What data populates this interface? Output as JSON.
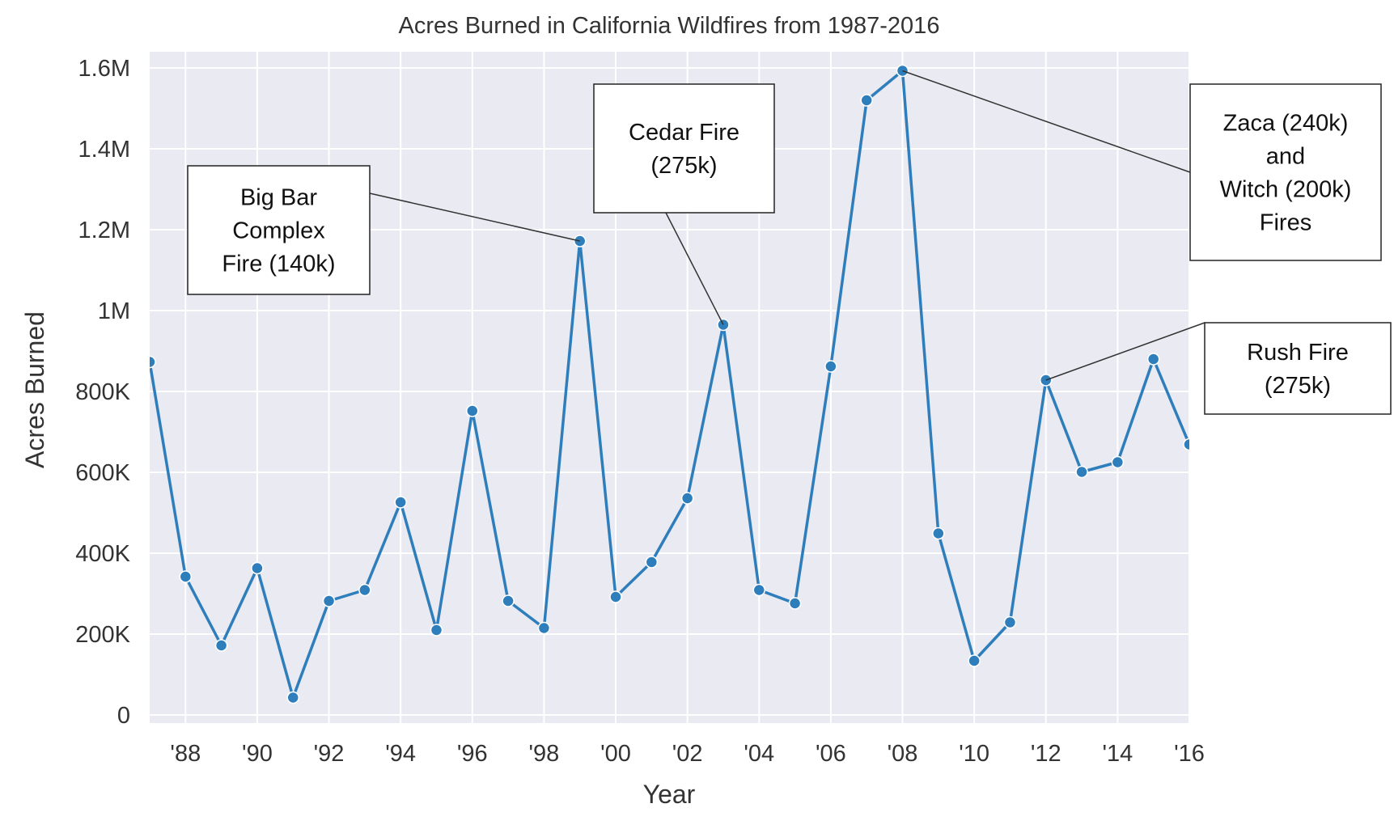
{
  "chart_data": {
    "type": "line",
    "title": "Acres Burned in California Wildfires from 1987-2016",
    "xlabel": "Year",
    "ylabel": "Acres Burned",
    "xlim": [
      1987,
      2016
    ],
    "ylim": [
      -20000,
      1640000
    ],
    "x_ticks": [
      {
        "value": 1988,
        "label": "'88"
      },
      {
        "value": 1990,
        "label": "'90"
      },
      {
        "value": 1992,
        "label": "'92"
      },
      {
        "value": 1994,
        "label": "'94"
      },
      {
        "value": 1996,
        "label": "'96"
      },
      {
        "value": 1998,
        "label": "'98"
      },
      {
        "value": 2000,
        "label": "'00"
      },
      {
        "value": 2002,
        "label": "'02"
      },
      {
        "value": 2004,
        "label": "'04"
      },
      {
        "value": 2006,
        "label": "'06"
      },
      {
        "value": 2008,
        "label": "'08"
      },
      {
        "value": 2010,
        "label": "'10"
      },
      {
        "value": 2012,
        "label": "'12"
      },
      {
        "value": 2014,
        "label": "'14"
      },
      {
        "value": 2016,
        "label": "'16"
      }
    ],
    "y_ticks": [
      {
        "value": 0,
        "label": "0"
      },
      {
        "value": 200000,
        "label": "200K"
      },
      {
        "value": 400000,
        "label": "400K"
      },
      {
        "value": 600000,
        "label": "600K"
      },
      {
        "value": 800000,
        "label": "800K"
      },
      {
        "value": 1000000,
        "label": "1M"
      },
      {
        "value": 1200000,
        "label": "1.2M"
      },
      {
        "value": 1400000,
        "label": "1.4M"
      },
      {
        "value": 1600000,
        "label": "1.6M"
      }
    ],
    "grid": true,
    "legend": "none",
    "series": [
      {
        "x": [
          1987,
          1988,
          1989,
          1990,
          1991,
          1992,
          1993,
          1994,
          1995,
          1996,
          1997,
          1998,
          1999,
          2000,
          2001,
          2002,
          2003,
          2004,
          2005,
          2006,
          2007,
          2008,
          2009,
          2010,
          2011,
          2012,
          2013,
          2014,
          2015,
          2016
        ],
        "values": [
          873000,
          342000,
          172000,
          363000,
          43000,
          282000,
          309000,
          526000,
          210000,
          752000,
          282000,
          215000,
          1172000,
          292000,
          378000,
          536000,
          965000,
          309000,
          276000,
          862000,
          1520000,
          1593000,
          449000,
          134000,
          229000,
          828000,
          601000,
          625000,
          880000,
          669000
        ]
      }
    ],
    "annotations": [
      {
        "lines": [
          "Big Bar",
          "Complex",
          "Fire (140k)"
        ],
        "x": 1999,
        "y": 1172000
      },
      {
        "lines": [
          "Cedar Fire",
          "(275k)"
        ],
        "x": 2003,
        "y": 965000
      },
      {
        "lines": [
          "Zaca (240k)",
          "and",
          "Witch (200k)",
          "Fires"
        ],
        "x": 2008,
        "y": 1593000
      },
      {
        "lines": [
          "Rush Fire",
          "(275k)"
        ],
        "x": 2012,
        "y": 828000
      }
    ],
    "colors": {
      "line": "#2f7ebc",
      "plot_background": "#eaeaf2",
      "grid": "#ffffff"
    }
  }
}
